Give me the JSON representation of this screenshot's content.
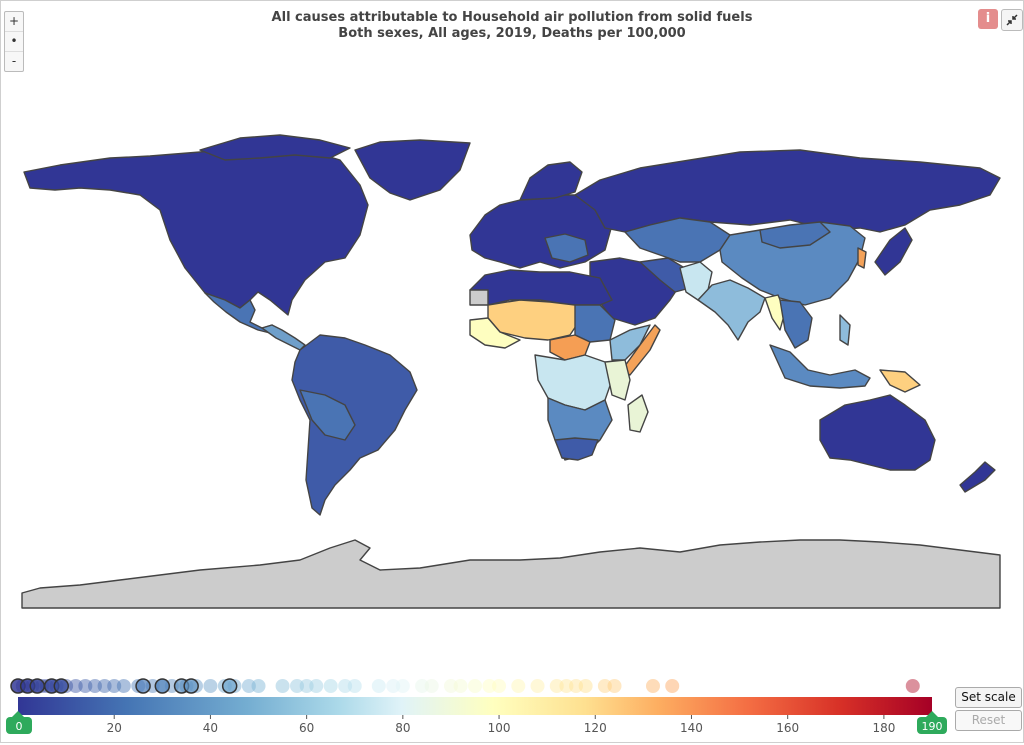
{
  "title_line1": "All causes attributable to Household air pollution from solid fuels",
  "title_line2": "Both sexes, All ages, 2019, Deaths per 100,000",
  "zoom": {
    "plus": "+",
    "reset": "•",
    "minus": "-"
  },
  "info_label": "i",
  "buttons": {
    "set_scale": "Set scale",
    "reset": "Reset"
  },
  "colors": {
    "low": "#313695",
    "mid": "#ffffbf",
    "high": "#a50026",
    "nodata": "#cccccc",
    "border": "#444444"
  },
  "chart_data": {
    "type": "choropleth",
    "title": "All causes attributable to Household air pollution from solid fuels",
    "subtitle": "Both sexes, All ages, 2019, Deaths per 100,000",
    "scale_min": 0,
    "scale_max": 190,
    "ticks": [
      20,
      40,
      60,
      80,
      100,
      120,
      140,
      160,
      180
    ],
    "min_label": "0",
    "max_label": "190",
    "dot_values": [
      0,
      1,
      2,
      3,
      4,
      5,
      6,
      7,
      8,
      9,
      10,
      12,
      14,
      16,
      18,
      20,
      22,
      25,
      28,
      30,
      32,
      35,
      37,
      40,
      43,
      45,
      48,
      50,
      55,
      58,
      60,
      62,
      65,
      68,
      70,
      75,
      78,
      80,
      84,
      86,
      90,
      92,
      95,
      98,
      100,
      104,
      108,
      112,
      114,
      116,
      118,
      122,
      124,
      132,
      136,
      186
    ],
    "highlighted_dots": [
      0,
      2,
      4,
      7,
      9,
      26,
      30,
      34,
      36,
      44
    ]
  }
}
